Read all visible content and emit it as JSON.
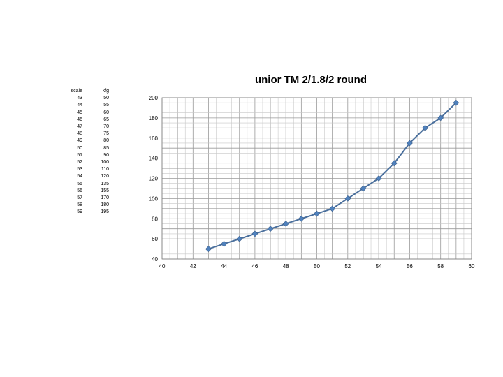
{
  "table": {
    "headers": [
      "scale",
      "kfg"
    ],
    "rows": [
      [
        "43",
        "50"
      ],
      [
        "44",
        "55"
      ],
      [
        "45",
        "60"
      ],
      [
        "46",
        "65"
      ],
      [
        "47",
        "70"
      ],
      [
        "48",
        "75"
      ],
      [
        "49",
        "80"
      ],
      [
        "50",
        "85"
      ],
      [
        "51",
        "90"
      ],
      [
        "52",
        "100"
      ],
      [
        "53",
        "110"
      ],
      [
        "54",
        "120"
      ],
      [
        "55",
        "135"
      ],
      [
        "56",
        "155"
      ],
      [
        "57",
        "170"
      ],
      [
        "58",
        "180"
      ],
      [
        "59",
        "195"
      ]
    ]
  },
  "chart_data": {
    "type": "line",
    "title": "unior TM 2/1.8/2 round",
    "xlabel": "",
    "ylabel": "",
    "x": [
      43,
      44,
      45,
      46,
      47,
      48,
      49,
      50,
      51,
      52,
      53,
      54,
      55,
      56,
      57,
      58,
      59
    ],
    "series": [
      {
        "values": [
          50,
          55,
          60,
          65,
          70,
          75,
          80,
          85,
          90,
          100,
          110,
          120,
          135,
          155,
          170,
          180,
          195
        ]
      }
    ],
    "xlim": [
      40,
      60
    ],
    "ylim": [
      40,
      200
    ],
    "xticks": [
      40,
      42,
      44,
      46,
      48,
      50,
      52,
      54,
      56,
      58,
      60
    ],
    "yticks": [
      40,
      60,
      80,
      100,
      120,
      140,
      160,
      180,
      200
    ],
    "x_minor_step": 0.5,
    "y_minor_step": 5,
    "grid": true,
    "legend": "none",
    "line_color": "#4a6f9c",
    "marker_color": "#4f81bd",
    "marker": "diamond"
  }
}
